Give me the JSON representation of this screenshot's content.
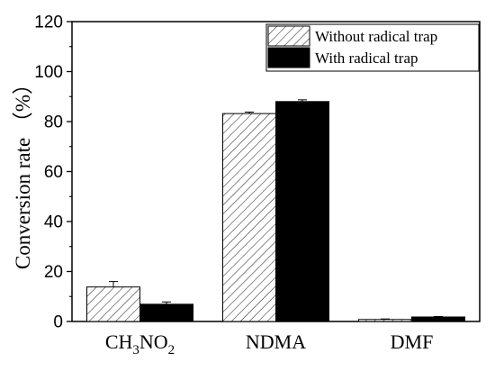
{
  "chart_data": {
    "type": "bar",
    "categories": [
      {
        "main": "CH",
        "parts": [
          [
            "CH",
            ""
          ],
          [
            "3",
            "sub"
          ],
          [
            "NO",
            ""
          ],
          [
            "2",
            "sub"
          ]
        ]
      },
      {
        "main": "NDMA",
        "parts": [
          [
            "NDMA",
            ""
          ]
        ]
      },
      {
        "main": "DMF",
        "parts": [
          [
            "DMF",
            ""
          ]
        ]
      }
    ],
    "series": [
      {
        "name": "Without radical trap",
        "fill": "hatched",
        "values": [
          13.8,
          83.2,
          0.8
        ],
        "errors": [
          2.2,
          0.6,
          0.2
        ]
      },
      {
        "name": "With radical trap",
        "fill": "#000000",
        "values": [
          6.9,
          88.0,
          1.8
        ],
        "errors": [
          0.9,
          0.7,
          0.2
        ]
      }
    ],
    "ylabel": "Conversion rate （%）",
    "ylim": [
      0,
      120
    ],
    "yticks": [
      0,
      20,
      40,
      60,
      80,
      100,
      120
    ],
    "grid": false,
    "legend_position": "top-right"
  }
}
